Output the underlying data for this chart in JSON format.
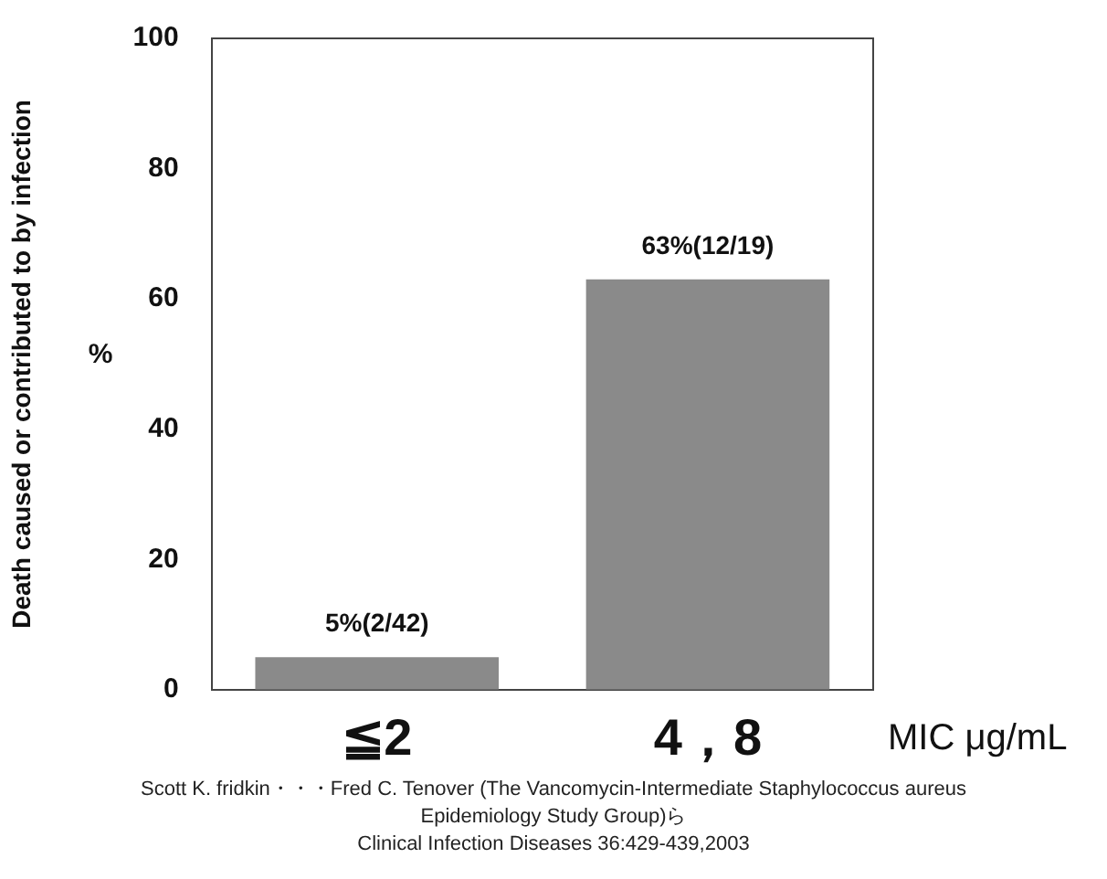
{
  "chart_data": {
    "type": "bar",
    "categories": [
      "≦2",
      "4，8"
    ],
    "values": [
      5,
      63
    ],
    "color": "#8a8a8a",
    "value_labels": [
      "5%(2/42)",
      "63%(12/19)"
    ],
    "ylabel": "Death caused or contributed to by infection",
    "xlabel": "MIC μg/mL",
    "ylim": [
      0,
      100
    ],
    "yticks": [
      0,
      20,
      40,
      60,
      80,
      100
    ],
    "grid": false,
    "legend": false,
    "annotations": [
      "%",
      "Scott K. fridkin・・・Fred C. Tenover (The Vancomycin-Intermediate Staphylococcus aureus",
      "Epidemiology Study Group)ら",
      "Clinical Infection Diseases 36:429-439,2003"
    ]
  }
}
